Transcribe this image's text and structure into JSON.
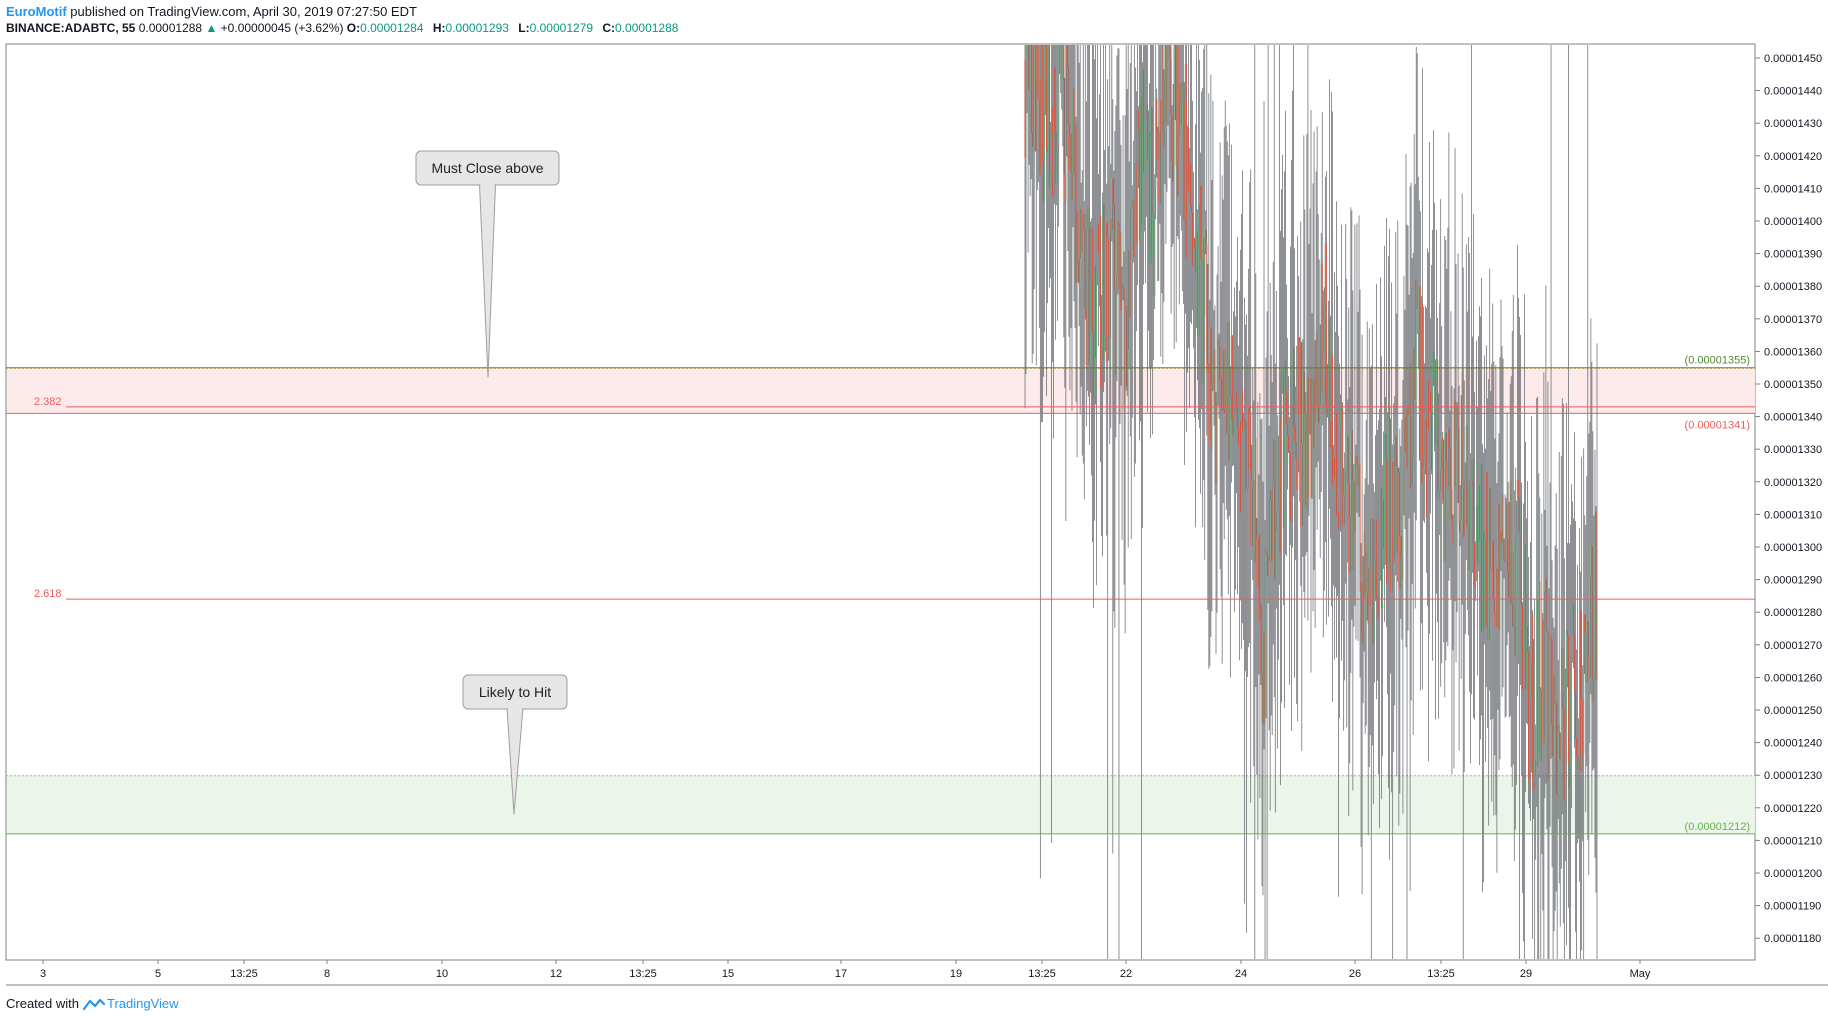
{
  "header": {
    "author": "EuroMotif",
    "published_text": " published on TradingView.com, April 30, 2019 07:27:50 EDT",
    "symbol": "BINANCE:ADABTC, 55",
    "last": "0.00001288",
    "change": "+0.00000045 (+3.62%)",
    "open_label": "O:",
    "open": "0.00001284",
    "high_label": "H:",
    "high": "0.00001293",
    "low_label": "L:",
    "low": "0.00001279",
    "close_label": "C:",
    "close": "0.00001288",
    "colors": {
      "up": "#089981",
      "author": "#2196f3"
    }
  },
  "footer": {
    "created": "Created with",
    "brand": "TradingView"
  },
  "chart_data": {
    "type": "candlestick",
    "title": "",
    "ylim": [
      1.173e-05,
      1.454e-05
    ],
    "y_ticks": [
      "0.00001450",
      "0.00001440",
      "0.00001430",
      "0.00001420",
      "0.00001410",
      "0.00001400",
      "0.00001390",
      "0.00001380",
      "0.00001370",
      "0.00001360",
      "0.00001350",
      "0.00001340",
      "0.00001330",
      "0.00001320",
      "0.00001310",
      "0.00001300",
      "0.00001290",
      "0.00001280",
      "0.00001270",
      "0.00001260",
      "0.00001250",
      "0.00001240",
      "0.00001230",
      "0.00001220",
      "0.00001210",
      "0.00001200",
      "0.00001190",
      "0.00001180"
    ],
    "x_ticks": [
      "3",
      "5",
      "13:25",
      "8",
      "10",
      "12",
      "13:25",
      "15",
      "17",
      "19",
      "13:25",
      "22",
      "24",
      "26",
      "13:25",
      "29",
      "May"
    ],
    "grid": false,
    "colors": {
      "up": "#6ba583",
      "down": "#d75442",
      "fib": "#f05b5b",
      "resistance": "#4d8b31",
      "support": "#6ab04c"
    },
    "zones": [
      {
        "name": "resistance-zone",
        "from": 1.341e-05,
        "to": 1.355e-05,
        "fill": "#fdeaea"
      },
      {
        "name": "support-zone",
        "from": 1.212e-05,
        "to": 1.23e-05,
        "fill": "#ecf5ea"
      }
    ],
    "levels": [
      {
        "name": "resistance-top",
        "value": 1.355e-05,
        "color": "#4d8b31",
        "label": "(0.00001355)"
      },
      {
        "name": "resistance-bottom",
        "value": 1.341e-05,
        "color": "#f05b5b",
        "label": "(0.00001341)"
      },
      {
        "name": "support-bottom",
        "value": 1.212e-05,
        "color": "#6ab04c",
        "label": "(0.00001212)"
      }
    ],
    "fib_levels": [
      {
        "ratio": "2.382",
        "value": 1.343e-05
      },
      {
        "ratio": "2.618",
        "value": 1.284e-05
      }
    ],
    "annotations": [
      {
        "name": "must-close-callout",
        "text": "Must Close above",
        "target": 1.352e-05
      },
      {
        "name": "likely-hit-callout",
        "text": "Likely to Hit",
        "target": 1.218e-05
      }
    ],
    "path": [
      [
        0.0,
        1.4495
      ],
      [
        0.8,
        1.44
      ],
      [
        1.5,
        1.443
      ],
      [
        2.2,
        1.425
      ],
      [
        3.0,
        1.439
      ],
      [
        3.6,
        1.442
      ],
      [
        4.3,
        1.43
      ],
      [
        5.0,
        1.415
      ],
      [
        5.7,
        1.39
      ],
      [
        6.5,
        1.377
      ],
      [
        7.2,
        1.37
      ],
      [
        7.9,
        1.384
      ],
      [
        8.6,
        1.388
      ],
      [
        9.2,
        1.376
      ],
      [
        10.0,
        1.372
      ],
      [
        10.7,
        1.39
      ],
      [
        11.5,
        1.42
      ],
      [
        12.2,
        1.415
      ],
      [
        13.0,
        1.405
      ],
      [
        13.7,
        1.43
      ],
      [
        14.3,
        1.44
      ],
      [
        15.0,
        1.438
      ],
      [
        15.8,
        1.429
      ],
      [
        16.5,
        1.41
      ],
      [
        17.3,
        1.39
      ],
      [
        18.0,
        1.37
      ],
      [
        18.6,
        1.356
      ],
      [
        19.2,
        1.348
      ],
      [
        19.9,
        1.337
      ],
      [
        20.6,
        1.343
      ],
      [
        21.3,
        1.328
      ],
      [
        22.0,
        1.333
      ],
      [
        22.6,
        1.319
      ],
      [
        23.3,
        1.3
      ],
      [
        23.9,
        1.263
      ],
      [
        24.6,
        1.297
      ],
      [
        25.3,
        1.318
      ],
      [
        26.0,
        1.332
      ],
      [
        26.6,
        1.328
      ],
      [
        27.3,
        1.336
      ],
      [
        28.0,
        1.329
      ],
      [
        28.7,
        1.343
      ],
      [
        29.4,
        1.356
      ],
      [
        30.0,
        1.372
      ],
      [
        30.6,
        1.342
      ],
      [
        31.3,
        1.33
      ],
      [
        32.0,
        1.313
      ],
      [
        32.7,
        1.308
      ],
      [
        33.4,
        1.302
      ],
      [
        34.0,
        1.295
      ],
      [
        34.7,
        1.286
      ],
      [
        35.4,
        1.302
      ],
      [
        36.0,
        1.31
      ],
      [
        36.7,
        1.316
      ],
      [
        37.3,
        1.312
      ],
      [
        38.0,
        1.323
      ],
      [
        38.6,
        1.334
      ],
      [
        39.2,
        1.359
      ],
      [
        39.9,
        1.342
      ],
      [
        40.5,
        1.329
      ],
      [
        41.2,
        1.331
      ],
      [
        41.8,
        1.325
      ],
      [
        42.5,
        1.326
      ],
      [
        43.2,
        1.324
      ],
      [
        43.8,
        1.329
      ],
      [
        44.5,
        1.319
      ],
      [
        45.2,
        1.307
      ],
      [
        45.9,
        1.292
      ],
      [
        46.6,
        1.299
      ],
      [
        47.3,
        1.292
      ],
      [
        48.0,
        1.301
      ],
      [
        48.7,
        1.295
      ],
      [
        49.3,
        1.296
      ],
      [
        50.0,
        1.282
      ],
      [
        50.6,
        1.248
      ],
      [
        51.3,
        1.257
      ],
      [
        52.0,
        1.266
      ],
      [
        52.7,
        1.254
      ],
      [
        53.3,
        1.236
      ],
      [
        54.0,
        1.242
      ],
      [
        54.6,
        1.254
      ],
      [
        55.3,
        1.256
      ],
      [
        56.0,
        1.252
      ],
      [
        56.7,
        1.27
      ],
      [
        57.4,
        1.288
      ]
    ]
  }
}
